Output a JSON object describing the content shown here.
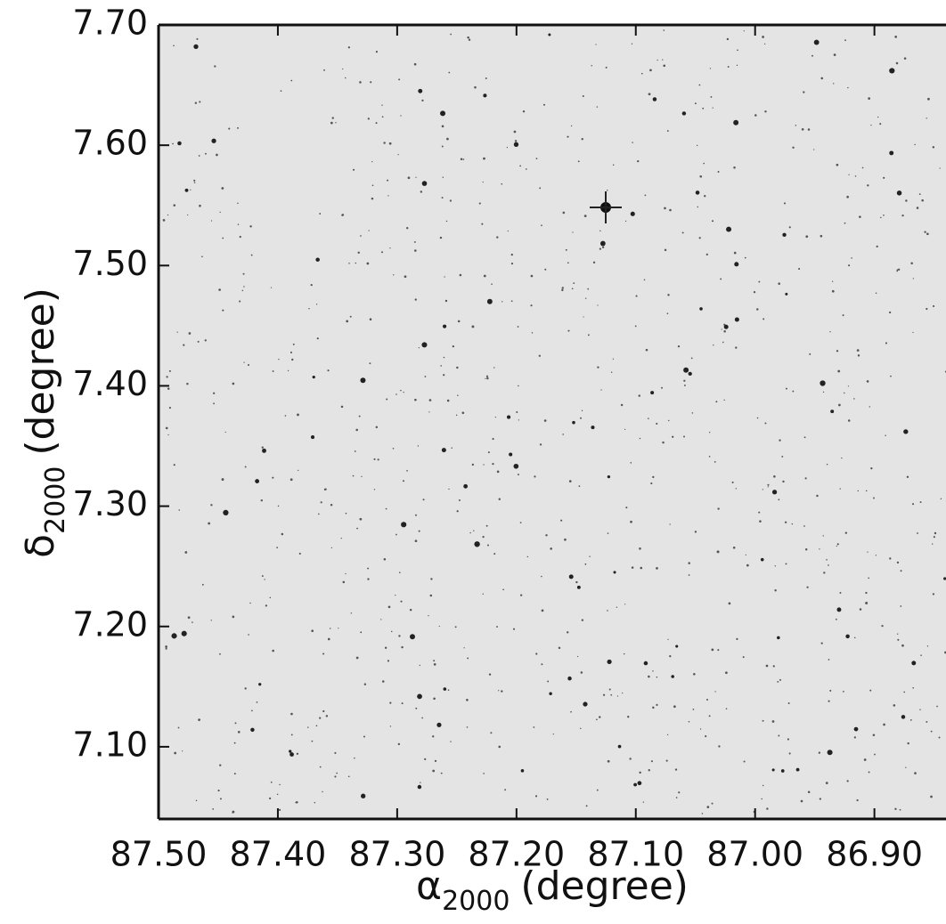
{
  "chart_data": {
    "type": "image",
    "xlabel": {
      "symbol": "α",
      "subscript": "2000",
      "unit": "(degree)"
    },
    "ylabel": {
      "symbol": "δ",
      "subscript": "2000",
      "unit": "(degree)"
    },
    "xlim": [
      87.5,
      86.84
    ],
    "ylim": [
      7.04,
      7.7
    ],
    "xticks": [
      {
        "value": 87.5,
        "label": "87.50"
      },
      {
        "value": 87.4,
        "label": "87.40"
      },
      {
        "value": 87.3,
        "label": "87.30"
      },
      {
        "value": 87.2,
        "label": "87.20"
      },
      {
        "value": 87.1,
        "label": "87.10"
      },
      {
        "value": 87.0,
        "label": "87.00"
      },
      {
        "value": 86.9,
        "label": "86.90"
      }
    ],
    "yticks": [
      {
        "value": 7.1,
        "label": "7.10"
      },
      {
        "value": 7.2,
        "label": "7.20"
      },
      {
        "value": 7.3,
        "label": "7.30"
      },
      {
        "value": 7.4,
        "label": "7.40"
      },
      {
        "value": 7.5,
        "label": "7.50"
      },
      {
        "value": 7.6,
        "label": "7.60"
      },
      {
        "value": 7.7,
        "label": "7.70"
      }
    ]
  }
}
